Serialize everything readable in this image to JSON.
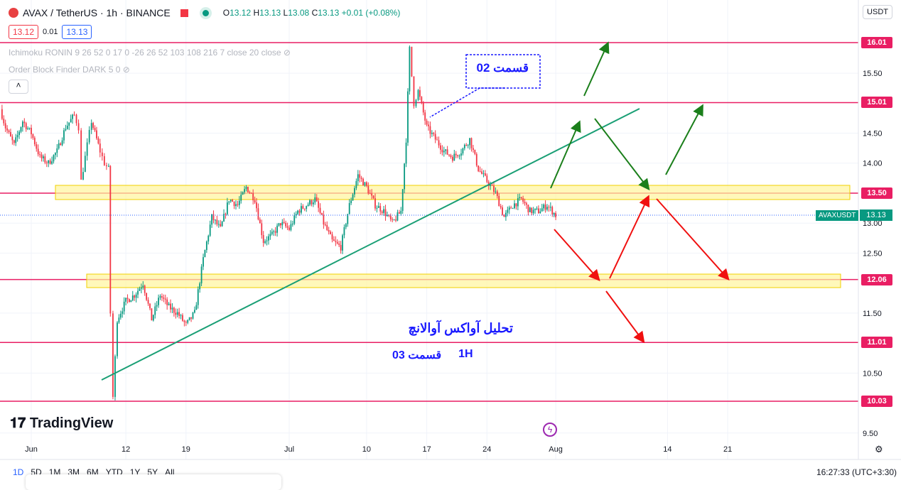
{
  "header": {
    "symbol": "AVAX / TetherUS · 1h · BINANCE",
    "ohlc": {
      "o": "13.12",
      "h": "13.13",
      "l": "13.08",
      "c": "13.13",
      "change": "+0.01 (+0.08%)"
    },
    "bid": "13.12",
    "spread": "0.01",
    "ask": "13.13",
    "currency": "USDT"
  },
  "indicators": [
    "Ichimoku RONIN 9 26 52 0 17 0 -26 26 52 103 108 216 7 close 20 close",
    "Order Block Finder DARK 5 0"
  ],
  "annotations": {
    "part02": "قسمت 02",
    "title": "تحلیل آواکس آوالانچ",
    "part03": "قسمت 03",
    "tf": "1H"
  },
  "brand": "TradingView",
  "symbol_tag": "AVAXUSDT",
  "current_price": "13.13",
  "bottom": {
    "ranges": [
      "1D",
      "5D",
      "1M",
      "3M",
      "6M",
      "YTD",
      "1Y",
      "5Y",
      "All"
    ],
    "clock": "16:27:33 (UTC+3:30)"
  },
  "colors": {
    "up": "#089981",
    "down": "#f23645",
    "level": "#e91e63",
    "zone": "#fff176",
    "trend": "#1a9f75",
    "arrow_up": "#1b7f1b",
    "arrow_down": "#f01010",
    "note": "#1a1aff"
  },
  "chart_data": {
    "type": "candlestick",
    "ylim": [
      9.3,
      16.4
    ],
    "y_ticks": [
      "16.01",
      "15.50",
      "15.01",
      "14.50",
      "14.00",
      "13.50",
      "13.00",
      "12.50",
      "12.06",
      "11.50",
      "11.01",
      "10.50",
      "10.03",
      "9.50"
    ],
    "x_ticks": [
      "Jun",
      "12",
      "19",
      "Jul",
      "10",
      "17",
      "24",
      "Aug",
      "14",
      "21"
    ],
    "levels": [
      "16.01",
      "15.01",
      "13.50",
      "12.06",
      "11.01",
      "10.03"
    ],
    "price_path_day_from_jun1": [
      [
        -3.6,
        14.9
      ],
      [
        -3,
        14.6
      ],
      [
        -2,
        14.3
      ],
      [
        -1,
        14.7
      ],
      [
        0,
        14.5
      ],
      [
        1,
        14.1
      ],
      [
        2,
        14.0
      ],
      [
        3,
        14.2
      ],
      [
        4,
        14.6
      ],
      [
        5,
        14.8
      ],
      [
        5.5,
        14.6
      ],
      [
        5.8,
        13.7
      ],
      [
        6.5,
        14.3
      ],
      [
        7,
        14.7
      ],
      [
        8,
        14.2
      ],
      [
        8.5,
        14.0
      ],
      [
        9,
        13.9
      ],
      [
        9.2,
        11.5
      ],
      [
        9.5,
        10.1
      ],
      [
        10,
        11.4
      ],
      [
        11,
        11.7
      ],
      [
        12,
        11.8
      ],
      [
        13,
        12.0
      ],
      [
        14,
        11.4
      ],
      [
        15,
        11.8
      ],
      [
        16,
        11.6
      ],
      [
        17,
        11.5
      ],
      [
        18,
        11.3
      ],
      [
        19,
        11.5
      ],
      [
        20,
        12.4
      ],
      [
        21,
        13.1
      ],
      [
        22,
        12.9
      ],
      [
        23,
        13.4
      ],
      [
        24,
        13.3
      ],
      [
        25,
        13.6
      ],
      [
        26,
        13.4
      ],
      [
        27,
        12.7
      ],
      [
        28,
        12.8
      ],
      [
        29,
        13.0
      ],
      [
        30,
        12.9
      ],
      [
        31,
        13.2
      ],
      [
        32,
        13.3
      ],
      [
        33,
        13.4
      ],
      [
        34,
        13.0
      ],
      [
        35,
        12.7
      ],
      [
        36,
        12.6
      ],
      [
        37,
        13.3
      ],
      [
        38,
        13.8
      ],
      [
        39,
        13.6
      ],
      [
        40,
        13.3
      ],
      [
        41,
        13.2
      ],
      [
        42,
        13.0
      ],
      [
        43,
        13.2
      ],
      [
        43.6,
        14.4
      ],
      [
        44,
        15.9
      ],
      [
        44.5,
        15.0
      ],
      [
        45,
        15.2
      ],
      [
        46,
        14.6
      ],
      [
        47,
        14.4
      ],
      [
        48,
        14.2
      ],
      [
        49,
        14.1
      ],
      [
        50,
        14.2
      ],
      [
        51,
        14.4
      ],
      [
        52,
        13.9
      ],
      [
        53,
        13.7
      ],
      [
        54,
        13.5
      ],
      [
        55,
        13.1
      ],
      [
        56,
        13.3
      ],
      [
        57,
        13.4
      ],
      [
        58,
        13.2
      ],
      [
        59,
        13.2
      ],
      [
        60,
        13.3
      ],
      [
        61,
        13.13
      ]
    ]
  }
}
